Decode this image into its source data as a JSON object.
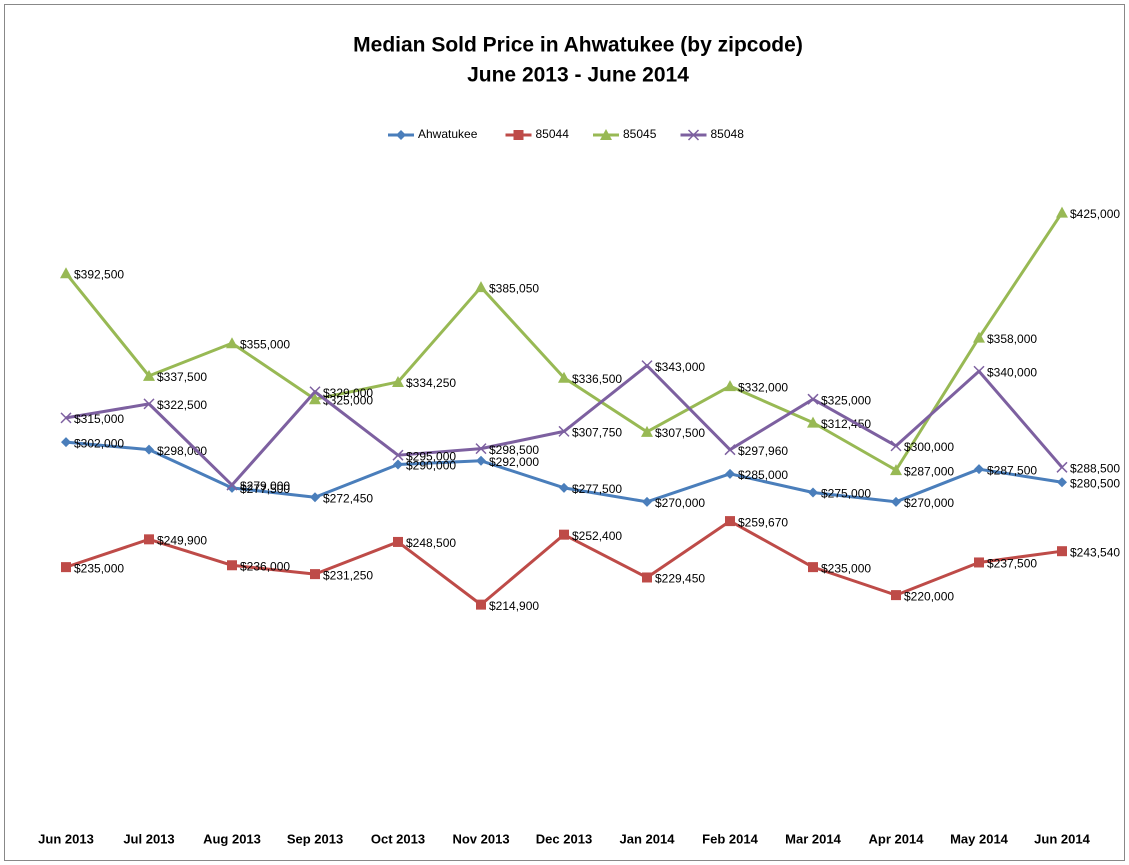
{
  "chart_data": {
    "type": "line",
    "title": "Median Sold Price in Ahwatukee (by zipcode)",
    "subtitle": "June 2013 - June 2014",
    "categories": [
      "Jun 2013",
      "Jul 2013",
      "Aug 2013",
      "Sep 2013",
      "Oct 2013",
      "Nov 2013",
      "Dec 2013",
      "Jan 2014",
      "Feb 2014",
      "Mar 2014",
      "Apr 2014",
      "May 2014",
      "Jun 2014"
    ],
    "ylim": [
      100000,
      450000
    ],
    "legend": "top",
    "series": [
      {
        "name": "Ahwatukee",
        "color": "#4a7ebb",
        "marker": "diamond",
        "values": [
          302000,
          298000,
          277500,
          272450,
          290000,
          292000,
          277500,
          270000,
          285000,
          275000,
          270000,
          287500,
          280500
        ],
        "value_labels": [
          "$302,000",
          "$298,000",
          "$277,500",
          "$272,450",
          "$290,000",
          "$292,000",
          "$277,500",
          "$270,000",
          "$285,000",
          "$275,000",
          "$270,000",
          "$287,500",
          "$280,500"
        ]
      },
      {
        "name": "85044",
        "color": "#be4b48",
        "marker": "square",
        "values": [
          235000,
          249900,
          236000,
          231250,
          248500,
          214900,
          252400,
          229450,
          259670,
          235000,
          220000,
          237500,
          243540
        ],
        "value_labels": [
          "$235,000",
          "$249,900",
          "$236,000",
          "$231,250",
          "$248,500",
          "$214,900",
          "$252,400",
          "$229,450",
          "$259,670",
          "$235,000",
          "$220,000",
          "$237,500",
          "$243,540"
        ]
      },
      {
        "name": "85045",
        "color": "#98b954",
        "marker": "triangle",
        "values": [
          392500,
          337500,
          355000,
          325000,
          334250,
          385050,
          336500,
          307500,
          332000,
          312450,
          287000,
          358000,
          425000
        ],
        "value_labels": [
          "$392,500",
          "$337,500",
          "$355,000",
          "$325,000",
          "$334,250",
          "$385,050",
          "$336,500",
          "$307,500",
          "$332,000",
          "$312,450",
          "$287,000",
          "$358,000",
          "$425,000"
        ]
      },
      {
        "name": "85048",
        "color": "#7d60a0",
        "marker": "x",
        "values": [
          315000,
          322500,
          279000,
          329000,
          295000,
          298500,
          307750,
          343000,
          297960,
          325000,
          300000,
          340000,
          288500
        ],
        "value_labels": [
          "$315,000",
          "$322,500",
          "$279,000",
          "$329,000",
          "$295,000",
          "$298,500",
          "$307,750",
          "$343,000",
          "$297,960",
          "$325,000",
          "$300,000",
          "$340,000",
          "$288,500"
        ]
      }
    ]
  }
}
